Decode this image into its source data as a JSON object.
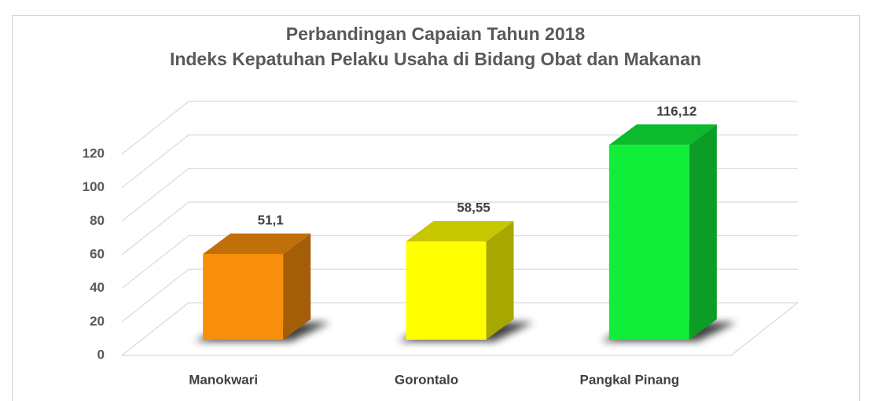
{
  "chart_data": {
    "type": "bar3d",
    "title": "Perbandingan Capaian Tahun 2018",
    "subtitle": "Indeks Kepatuhan Pelaku Usaha di Bidang Obat dan Makanan",
    "categories": [
      "Manokwari",
      "Gorontalo",
      "Pangkal Pinang"
    ],
    "values": [
      51.1,
      58.55,
      116.12
    ],
    "value_labels": [
      "51,1",
      "58,55",
      "116,12"
    ],
    "colors": [
      "#f88f0c",
      "#ffff00",
      "#11ee3a"
    ],
    "ylim": [
      0,
      120
    ],
    "yticks": [
      0,
      20,
      40,
      60,
      80,
      100,
      120
    ],
    "grid": true
  }
}
